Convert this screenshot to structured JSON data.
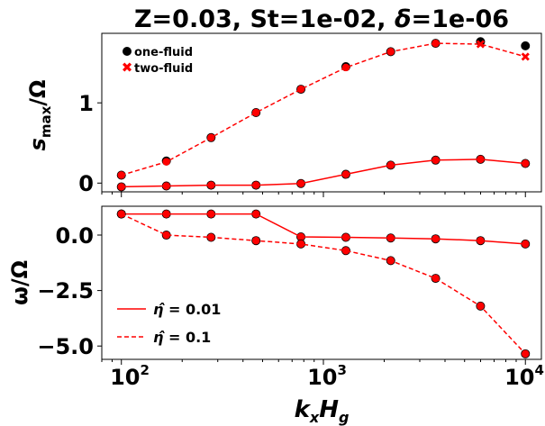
{
  "title_parts": {
    "prefix": "Z=0.03, St=1e-02, ",
    "delta_symbol": "δ",
    "suffix": "=1e-06"
  },
  "xlabel": {
    "k": "k",
    "x": "x",
    "H": "H",
    "g": "g"
  },
  "xticks": [
    {
      "base": "10",
      "exp": "2",
      "value": 100
    },
    {
      "base": "10",
      "exp": "3",
      "value": 1000
    },
    {
      "base": "10",
      "exp": "4",
      "value": 10000
    }
  ],
  "top_ylabel": {
    "s": "s",
    "sub": "max",
    "rest": "/Ω"
  },
  "bottom_ylabel": "ω/Ω",
  "top_yticks": [
    "0",
    "1"
  ],
  "bottom_yticks": [
    "0.0",
    "−2.5",
    "−5.0"
  ],
  "legend_top": {
    "one_fluid": "one-fluid",
    "two_fluid": "two-fluid"
  },
  "legend_bottom": {
    "eta1": {
      "hat": "η̂",
      "eq": " = 0.01"
    },
    "eta2": {
      "hat": "η̂",
      "eq": " = 0.1"
    }
  },
  "colors": {
    "series": "#ff0000",
    "one_fluid_marker": "#000000",
    "axis": "#000000"
  },
  "chart_data": [
    {
      "type": "line",
      "panel": "top",
      "xscale": "log",
      "xlim": [
        80,
        12000
      ],
      "ylim": [
        -0.05,
        1.85
      ],
      "x": [
        100,
        167,
        278,
        464,
        774,
        1292,
        2154,
        3594,
        5995,
        10000
      ],
      "series": [
        {
          "name": "η̂ = 0.01",
          "style": "solid",
          "one_fluid": [
            0.01,
            0.02,
            0.03,
            0.03,
            0.05,
            0.16,
            0.27,
            0.33,
            0.34,
            0.29
          ],
          "two_fluid": [
            0.01,
            0.02,
            0.03,
            0.03,
            0.05,
            0.16,
            0.27,
            0.33,
            0.34,
            0.29
          ]
        },
        {
          "name": "η̂ = 0.1",
          "style": "dashed",
          "one_fluid": [
            0.15,
            0.32,
            0.6,
            0.9,
            1.18,
            1.45,
            1.63,
            1.73,
            1.75,
            1.7
          ],
          "two_fluid": [
            0.15,
            0.31,
            0.6,
            0.9,
            1.18,
            1.44,
            1.63,
            1.73,
            1.72,
            1.57
          ]
        }
      ]
    },
    {
      "type": "line",
      "panel": "bottom",
      "xscale": "log",
      "xlim": [
        80,
        12000
      ],
      "ylim": [
        -5.55,
        1.35
      ],
      "x": [
        100,
        167,
        278,
        464,
        774,
        1292,
        2154,
        3594,
        5995,
        10000
      ],
      "series": [
        {
          "name": "η̂ = 0.01",
          "style": "solid",
          "one_fluid": [
            1.0,
            1.0,
            1.0,
            1.0,
            -0.03,
            -0.05,
            -0.08,
            -0.12,
            -0.2,
            -0.35
          ],
          "two_fluid": [
            1.0,
            1.0,
            1.0,
            1.0,
            -0.03,
            -0.05,
            -0.08,
            -0.12,
            -0.2,
            -0.35
          ]
        },
        {
          "name": "η̂ = 0.1",
          "style": "dashed",
          "one_fluid": [
            1.0,
            0.05,
            -0.05,
            -0.2,
            -0.35,
            -0.65,
            -1.1,
            -1.9,
            -3.15,
            -5.3
          ],
          "two_fluid": [
            1.0,
            0.05,
            -0.05,
            -0.2,
            -0.35,
            -0.65,
            -1.1,
            -1.9,
            -3.15,
            -5.3
          ]
        }
      ]
    }
  ]
}
